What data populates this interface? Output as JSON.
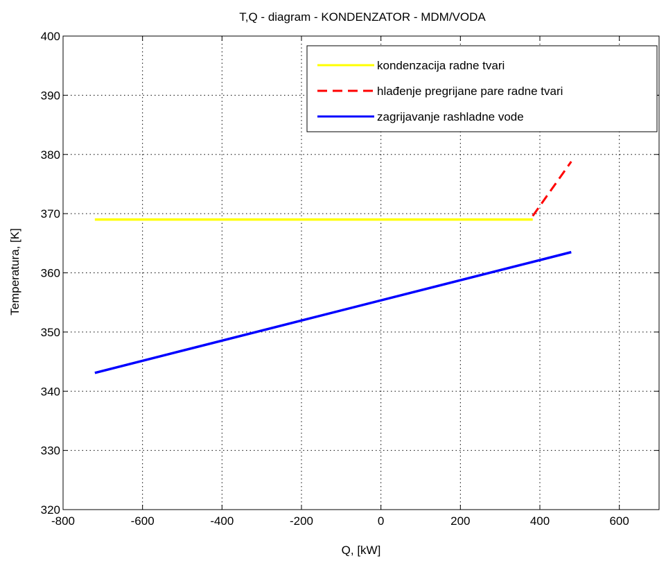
{
  "chart_data": {
    "type": "line",
    "title": "T,Q - diagram - KONDENZATOR - MDM/VODA",
    "xlabel": "Q, [kW]",
    "ylabel": "Temperatura, [K]",
    "xlim": [
      -800,
      700
    ],
    "ylim": [
      320,
      400
    ],
    "xticks": [
      -800,
      -600,
      -400,
      -200,
      0,
      200,
      400,
      600
    ],
    "yticks": [
      320,
      330,
      340,
      350,
      360,
      370,
      380,
      390,
      400
    ],
    "grid": true,
    "legend_position": "top-right",
    "series": [
      {
        "name": "kondenzacija radne tvari",
        "color": "#ffff00",
        "style": "solid",
        "x": [
          -720,
          382
        ],
        "y": [
          369,
          369
        ]
      },
      {
        "name": "hlađenje pregrijane pare radne tvari",
        "color": "#ff0000",
        "style": "dashed",
        "x": [
          382,
          479
        ],
        "y": [
          369.6,
          378.8
        ]
      },
      {
        "name": "zagrijavanje rashladne vode",
        "color": "#0000ff",
        "style": "solid",
        "x": [
          -720,
          479
        ],
        "y": [
          343.1,
          363.5
        ]
      }
    ]
  }
}
